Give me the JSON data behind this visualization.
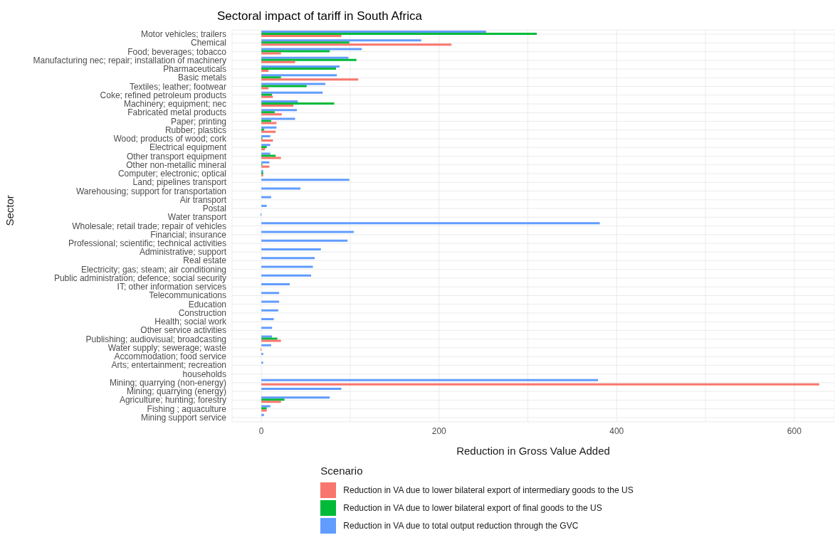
{
  "chart_data": {
    "type": "bar",
    "orientation": "horizontal",
    "title": "Sectoral impact of tariff in South Africa",
    "xlabel": "Reduction in Gross Value Added",
    "ylabel": "Sector",
    "legend_title": "Scenario",
    "legend": "bottom",
    "grid": true,
    "categories": [
      "Motor vehicles; trailers",
      "Chemical",
      "Food; beverages; tobacco",
      "Manufacturing nec; repair; installation of machinery",
      "Pharmaceuticals",
      "Basic metals",
      "Textiles; leather; footwear",
      "Coke; refined petroleum products",
      "Machinery; equipment; nec",
      "Fabricated metal products",
      "Paper; printing",
      "Rubber; plastics",
      "Wood; products of wood; cork",
      "Electrical equipment",
      "Other transport equipment",
      "Other non-metallic mineral",
      "Computer; electronic; optical",
      "Land; pipelines transport",
      "Warehousing; support for transportation",
      "Air transport",
      "Postal",
      "Water transport",
      "Wholesale; retail trade; repair of vehicles",
      "Financial; insurance",
      "Professional; scientific; technical activities",
      "Administrative; support",
      "Real estate",
      "Electricity; gas; steam; air conditioning",
      "Public administration; defence; social security",
      "IT; other information services",
      "Telecommunications",
      "Education",
      "Construction",
      "Health; social work",
      "Other service activities",
      "Publishing; audiovisual; broadcasting",
      "Water supply; sewerage; waste",
      "Accommodation; food service",
      "Arts; entertainment; recreation",
      "households",
      "Mining; quarrying (non-energy)",
      "Mining; quarrying (energy)",
      "Agriculture; hunting; forestry",
      "Fishing ; aquaculture",
      "Mining support service"
    ],
    "series": [
      {
        "name": "Reduction in VA due to lower bilateral export of intermediary goods to the US",
        "color": "#f8766d",
        "values": [
          90,
          214,
          22,
          38,
          8,
          109,
          8,
          13,
          36,
          23,
          17,
          16,
          13,
          4,
          22,
          9,
          2,
          null,
          null,
          null,
          null,
          null,
          null,
          null,
          null,
          null,
          null,
          null,
          null,
          null,
          null,
          null,
          null,
          null,
          null,
          22,
          -1,
          null,
          null,
          null,
          628,
          null,
          22,
          6,
          null
        ]
      },
      {
        "name": "Reduction in VA due to lower bilateral export of final goods to the US",
        "color": "#00ba38",
        "values": [
          310,
          99,
          77,
          107,
          84,
          22,
          51,
          12,
          82,
          15,
          11,
          3,
          1,
          6,
          16,
          1,
          2,
          null,
          null,
          null,
          null,
          null,
          null,
          null,
          null,
          null,
          null,
          null,
          null,
          null,
          null,
          null,
          null,
          null,
          null,
          18,
          null,
          null,
          null,
          null,
          null,
          null,
          26,
          6,
          null
        ]
      },
      {
        "name": "Reduction in VA due to total output reduction through the GVC",
        "color": "#619cff",
        "values": [
          253,
          180,
          113,
          98,
          88,
          85,
          72,
          69,
          41,
          40,
          38,
          17,
          10,
          10,
          10,
          9,
          2,
          99,
          44,
          11,
          6,
          -1,
          381,
          104,
          97,
          67,
          60,
          58,
          56,
          32,
          20,
          20,
          19,
          14,
          12,
          12,
          11,
          2,
          2,
          null,
          379,
          90,
          77,
          10,
          3
        ]
      }
    ],
    "xlim": [
      -33,
      645
    ],
    "xticks": [
      0,
      {
        "value": 100,
        "label": null
      },
      200,
      {
        "value": 300,
        "label": null
      },
      400,
      {
        "value": 500,
        "label": null
      },
      600
    ]
  }
}
